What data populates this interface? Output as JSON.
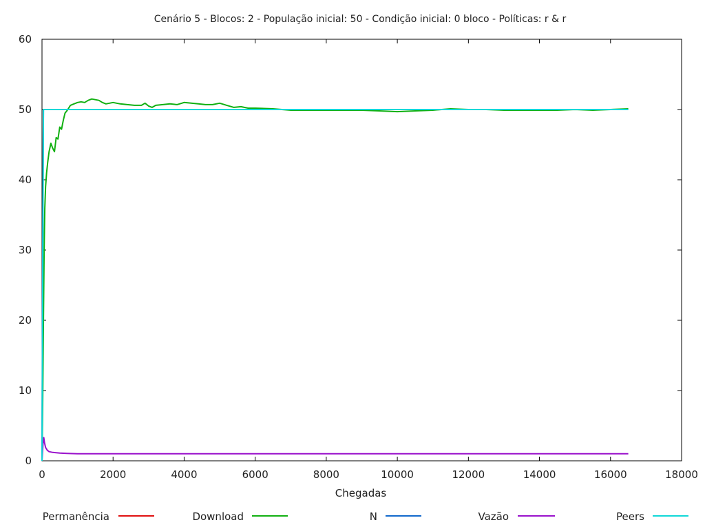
{
  "chart_data": {
    "type": "line",
    "title": "Cenário 5 - Blocos: 2 - População inicial: 50 - Condição inicial: 0 bloco - Políticas: r & r",
    "xlabel": "Chegadas",
    "ylabel": "",
    "xlim": [
      0,
      18000
    ],
    "ylim": [
      0,
      60
    ],
    "xticks": [
      "0",
      "2000",
      "4000",
      "6000",
      "8000",
      "10000",
      "12000",
      "14000",
      "16000",
      "18000"
    ],
    "yticks": [
      "0",
      "10",
      "20",
      "30",
      "40",
      "50",
      "60"
    ],
    "grid": false,
    "legend_position": "bottom",
    "series": [
      {
        "name": "Permanência",
        "color": "#e01010",
        "x": [],
        "y": []
      },
      {
        "name": "Download",
        "color": "#11b011",
        "x": [
          0,
          20,
          40,
          60,
          80,
          100,
          130,
          160,
          200,
          250,
          300,
          350,
          400,
          450,
          500,
          550,
          600,
          650,
          700,
          750,
          800,
          900,
          1000,
          1100,
          1200,
          1300,
          1400,
          1500,
          1600,
          1700,
          1800,
          1900,
          2000,
          2200,
          2400,
          2600,
          2800,
          2900,
          3000,
          3100,
          3200,
          3400,
          3600,
          3800,
          4000,
          4200,
          4400,
          4600,
          4800,
          5000,
          5200,
          5400,
          5600,
          5800,
          6000,
          6500,
          7000,
          7500,
          8000,
          8500,
          9000,
          9500,
          10000,
          10500,
          11000,
          11500,
          12000,
          12500,
          13000,
          13500,
          14000,
          14500,
          15000,
          15500,
          16000,
          16500
        ],
        "y": [
          0,
          8,
          20,
          30,
          36,
          39,
          41,
          42.5,
          44,
          45.2,
          44.5,
          44,
          46,
          45.8,
          47.5,
          47.2,
          48.5,
          49.5,
          49.8,
          50.2,
          50.6,
          50.8,
          51,
          51.1,
          51,
          51.3,
          51.5,
          51.4,
          51.3,
          51,
          50.8,
          50.9,
          51,
          50.8,
          50.7,
          50.6,
          50.6,
          50.9,
          50.5,
          50.3,
          50.6,
          50.7,
          50.8,
          50.7,
          51,
          50.9,
          50.8,
          50.7,
          50.7,
          50.9,
          50.6,
          50.3,
          50.4,
          50.2,
          50.2,
          50.1,
          49.9,
          49.9,
          49.9,
          49.9,
          49.9,
          49.8,
          49.7,
          49.8,
          49.9,
          50.1,
          50,
          50,
          49.9,
          49.9,
          49.9,
          49.9,
          50,
          49.9,
          50,
          50.1
        ]
      },
      {
        "name": "N",
        "color": "#1168cc",
        "x": [
          0,
          20,
          40
        ],
        "y": [
          0,
          30,
          50
        ]
      },
      {
        "name": "Vazão",
        "color": "#9a11cc",
        "x": [
          0,
          30,
          50,
          70,
          100,
          150,
          200,
          300,
          400,
          500,
          700,
          1000,
          2000,
          4000,
          6000,
          8000,
          10000,
          12000,
          14000,
          16500
        ],
        "y": [
          0,
          2.5,
          3.3,
          2.6,
          1.9,
          1.5,
          1.3,
          1.2,
          1.15,
          1.1,
          1.05,
          1,
          1,
          1,
          1,
          1,
          1,
          1,
          1,
          1
        ]
      },
      {
        "name": "Peers",
        "color": "#10d8d8",
        "x": [
          0,
          40,
          40,
          16500
        ],
        "y": [
          0,
          50,
          50,
          50
        ]
      }
    ]
  }
}
